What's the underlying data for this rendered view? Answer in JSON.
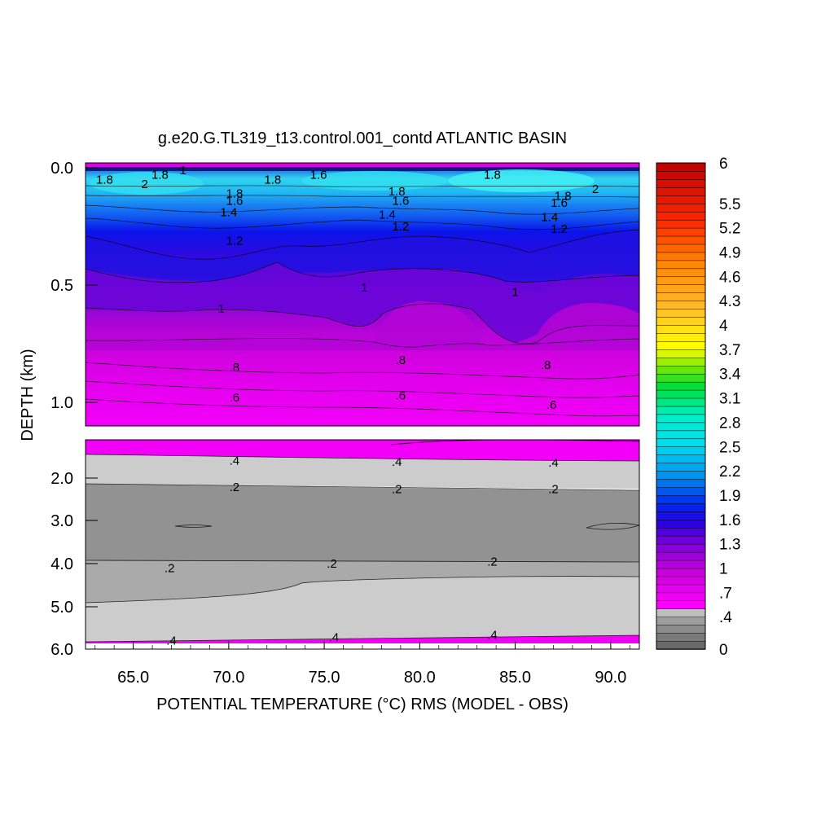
{
  "chart_data": {
    "type": "heatmap",
    "title": "g.e20.G.TL319_t13.control.001_contd ATLANTIC BASIN",
    "xlabel": "POTENTIAL TEMPERATURE (°C) RMS (MODEL - OBS)",
    "ylabel": "DEPTH (km)",
    "xlim": [
      62.5,
      91.5
    ],
    "x_ticks": [
      "65.0",
      "70.0",
      "75.0",
      "80.0",
      "85.0",
      "90.0"
    ],
    "upper_panel": {
      "ylim": [
        0.0,
        1.1
      ],
      "y_ticks": [
        "0.0",
        "0.5",
        "1.0"
      ]
    },
    "lower_panel": {
      "ylim": [
        1.1,
        6.0
      ],
      "y_ticks": [
        "2.0",
        "3.0",
        "4.0",
        "5.0",
        "6.0"
      ]
    },
    "colorbar": {
      "labels": [
        "6",
        "5.5",
        "5.2",
        "4.9",
        "4.6",
        "4.3",
        "4",
        "3.7",
        "3.4",
        "3.1",
        "2.8",
        "2.5",
        "2.2",
        "1.9",
        "1.6",
        "1.3",
        "1",
        ".7",
        ".4",
        "0"
      ]
    },
    "contour_labels": {
      "upper": [
        {
          "text": "1.8",
          "x": 63.5,
          "depth": 0.05
        },
        {
          "text": "2",
          "x": 65.6,
          "depth": 0.07
        },
        {
          "text": "1.8",
          "x": 66.4,
          "depth": 0.03
        },
        {
          "text": "1",
          "x": 67.6,
          "depth": 0.01
        },
        {
          "text": "1.8",
          "x": 72.3,
          "depth": 0.05
        },
        {
          "text": "1.6",
          "x": 74.7,
          "depth": 0.03
        },
        {
          "text": "1.8",
          "x": 70.3,
          "depth": 0.11
        },
        {
          "text": "1.6",
          "x": 70.3,
          "depth": 0.14
        },
        {
          "text": "1.4",
          "x": 70.0,
          "depth": 0.19
        },
        {
          "text": "1.2",
          "x": 70.3,
          "depth": 0.31
        },
        {
          "text": "1.8",
          "x": 78.8,
          "depth": 0.1
        },
        {
          "text": "1.6",
          "x": 79.0,
          "depth": 0.14
        },
        {
          "text": "1.4",
          "x": 78.3,
          "depth": 0.2
        },
        {
          "text": "1.2",
          "x": 79.0,
          "depth": 0.25
        },
        {
          "text": "1.8",
          "x": 83.8,
          "depth": 0.03
        },
        {
          "text": "1.8",
          "x": 87.5,
          "depth": 0.12
        },
        {
          "text": "2",
          "x": 89.2,
          "depth": 0.09
        },
        {
          "text": "1.6",
          "x": 87.3,
          "depth": 0.15
        },
        {
          "text": "1.4",
          "x": 86.8,
          "depth": 0.21
        },
        {
          "text": "1.2",
          "x": 87.3,
          "depth": 0.26
        },
        {
          "text": "1",
          "x": 77.1,
          "depth": 0.51
        },
        {
          "text": "1",
          "x": 69.6,
          "depth": 0.6
        },
        {
          "text": "1",
          "x": 85.0,
          "depth": 0.53
        },
        {
          "text": ".8",
          "x": 70.3,
          "depth": 0.85
        },
        {
          "text": ".8",
          "x": 79.0,
          "depth": 0.82
        },
        {
          "text": ".8",
          "x": 86.6,
          "depth": 0.84
        },
        {
          "text": ".6",
          "x": 70.3,
          "depth": 0.98
        },
        {
          "text": ".6",
          "x": 79.0,
          "depth": 0.97
        },
        {
          "text": ".6",
          "x": 86.9,
          "depth": 1.01
        }
      ],
      "lower": [
        {
          "text": ".4",
          "x": 70.3,
          "depth": 1.59
        },
        {
          "text": ".4",
          "x": 78.8,
          "depth": 1.62
        },
        {
          "text": ".4",
          "x": 87.0,
          "depth": 1.64
        },
        {
          "text": ".2",
          "x": 70.3,
          "depth": 2.21
        },
        {
          "text": ".2",
          "x": 78.8,
          "depth": 2.26
        },
        {
          "text": ".2",
          "x": 87.0,
          "depth": 2.26
        },
        {
          "text": ".2",
          "x": 66.9,
          "depth": 4.1
        },
        {
          "text": ".2",
          "x": 75.4,
          "depth": 4.0
        },
        {
          "text": ".2",
          "x": 83.8,
          "depth": 3.95
        },
        {
          "text": ".4",
          "x": 67.0,
          "depth": 5.8
        },
        {
          "text": ".4",
          "x": 75.5,
          "depth": 5.72
        },
        {
          "text": ".4",
          "x": 83.8,
          "depth": 5.66
        }
      ]
    }
  }
}
